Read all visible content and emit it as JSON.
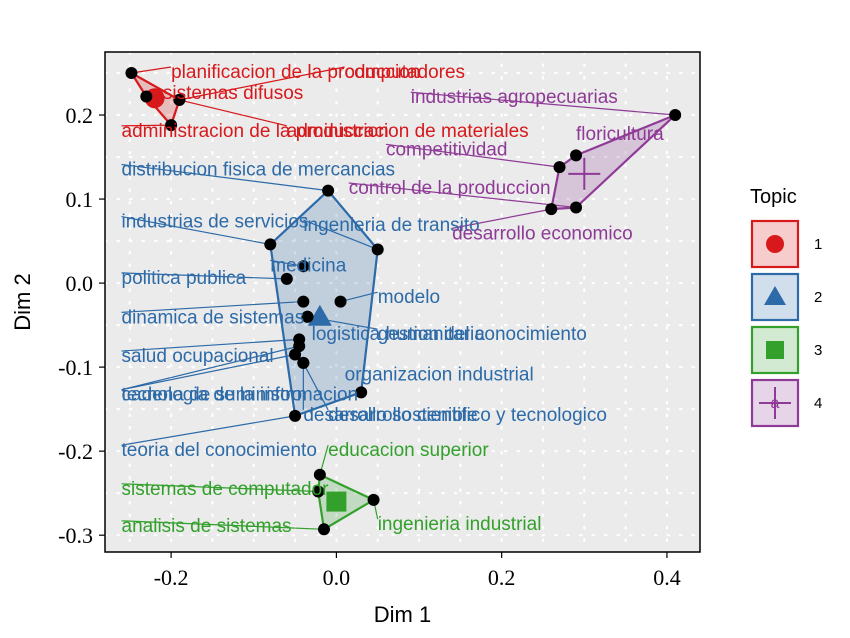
{
  "chart_data": {
    "type": "scatter",
    "title": "",
    "xlabel": "Dim 1",
    "ylabel": "Dim 2",
    "xlim": [
      -0.28,
      0.44
    ],
    "ylim": [
      -0.32,
      0.275
    ],
    "xticks": [
      -0.2,
      0.0,
      0.2,
      0.4
    ],
    "xtick_labels": [
      "-0.2",
      "0.0",
      "0.2",
      "0.4"
    ],
    "yticks": [
      -0.3,
      -0.2,
      -0.1,
      0.0,
      0.1,
      0.2
    ],
    "ytick_labels": [
      "-0.3",
      "-0.2",
      "-0.1",
      "0.0",
      "0.1",
      "0.2"
    ],
    "grid": true,
    "legend": {
      "title": "Topic",
      "placement": "right",
      "entries": [
        {
          "label": "1",
          "shape": "circle",
          "color": "#d7191c"
        },
        {
          "label": "2",
          "shape": "triangle",
          "color": "#2c6aa8"
        },
        {
          "label": "3",
          "shape": "square",
          "color": "#33a02c"
        },
        {
          "label": "4",
          "shape": "plus",
          "color": "#8e3a96"
        }
      ]
    },
    "series": [
      {
        "topic": "1",
        "color": "#d7191c",
        "centroid": {
          "x": -0.22,
          "y": 0.22
        },
        "points": [
          {
            "x": -0.248,
            "y": 0.25,
            "label": "planificacion de la produccion",
            "lx": -0.2,
            "ly": 0.25
          },
          {
            "x": -0.23,
            "y": 0.222,
            "label": "sistemas difusos",
            "lx": -0.21,
            "ly": 0.225
          },
          {
            "x": -0.19,
            "y": 0.218,
            "label": "computadores",
            "lx": 0.01,
            "ly": 0.25
          },
          {
            "x": -0.2,
            "y": 0.188,
            "label": "administracion de la produccion",
            "lx": -0.26,
            "ly": 0.18
          },
          {
            "x": -0.19,
            "y": 0.218,
            "label": "administracion de materiales",
            "lx": -0.06,
            "ly": 0.18
          }
        ]
      },
      {
        "topic": "2",
        "color": "#2c6aa8",
        "centroid": {
          "x": -0.02,
          "y": -0.04
        },
        "points": [
          {
            "x": -0.01,
            "y": 0.11,
            "label": "distribucion fisica de mercancias",
            "lx": -0.26,
            "ly": 0.134
          },
          {
            "x": -0.08,
            "y": 0.046,
            "label": "industrias de servicios",
            "lx": -0.26,
            "ly": 0.072
          },
          {
            "x": 0.05,
            "y": 0.04,
            "label": "ingenieria de transito",
            "lx": -0.04,
            "ly": 0.068
          },
          {
            "x": -0.04,
            "y": 0.02,
            "label": "medicina",
            "lx": -0.08,
            "ly": 0.02
          },
          {
            "x": -0.06,
            "y": 0.005,
            "label": "politica publica",
            "lx": -0.26,
            "ly": 0.005
          },
          {
            "x": 0.005,
            "y": -0.022,
            "label": "modelo",
            "lx": 0.05,
            "ly": -0.018
          },
          {
            "x": -0.04,
            "y": -0.022,
            "label": "dinamica de sistemas",
            "lx": -0.26,
            "ly": -0.042
          },
          {
            "x": -0.035,
            "y": -0.04,
            "label": "logistica humanitaria",
            "lx": -0.03,
            "ly": -0.062
          },
          {
            "x": -0.035,
            "y": -0.04,
            "label": "gestion del conocimiento",
            "lx": 0.05,
            "ly": -0.062
          },
          {
            "x": -0.045,
            "y": -0.067,
            "label": "salud ocupacional",
            "lx": -0.26,
            "ly": -0.088
          },
          {
            "x": -0.05,
            "y": -0.085,
            "label": "tecnologia de la informacion",
            "lx": -0.26,
            "ly": -0.134
          },
          {
            "x": -0.045,
            "y": -0.075,
            "label": "cadena de suministro",
            "lx": -0.26,
            "ly": -0.134
          },
          {
            "x": 0.03,
            "y": -0.13,
            "label": "organizacion industrial",
            "lx": 0.01,
            "ly": -0.11
          },
          {
            "x": -0.04,
            "y": -0.095,
            "label": "desarrollo sostenible",
            "lx": -0.04,
            "ly": -0.158
          },
          {
            "x": -0.04,
            "y": -0.095,
            "label": "desarrollo cientifico y tecnologico",
            "lx": -0.01,
            "ly": -0.158
          },
          {
            "x": -0.05,
            "y": -0.158,
            "label": "teoria del conocimiento",
            "lx": -0.26,
            "ly": -0.2
          }
        ]
      },
      {
        "topic": "3",
        "color": "#33a02c",
        "centroid": {
          "x": 0.0,
          "y": -0.26
        },
        "points": [
          {
            "x": -0.02,
            "y": -0.228,
            "label": "educacion superior",
            "lx": -0.01,
            "ly": -0.2
          },
          {
            "x": -0.022,
            "y": -0.248,
            "label": "sistemas de computador",
            "lx": -0.26,
            "ly": -0.246
          },
          {
            "x": 0.045,
            "y": -0.258,
            "label": "ingenieria industrial",
            "lx": 0.05,
            "ly": -0.288
          },
          {
            "x": -0.015,
            "y": -0.293,
            "label": "analisis de sistemas",
            "lx": -0.26,
            "ly": -0.29
          }
        ]
      },
      {
        "topic": "4",
        "color": "#8e3a96",
        "centroid": {
          "x": 0.3,
          "y": 0.13
        },
        "points": [
          {
            "x": 0.41,
            "y": 0.2,
            "label": "industrias agropecuarias",
            "lx": 0.09,
            "ly": 0.22
          },
          {
            "x": 0.29,
            "y": 0.152,
            "label": "floricultura",
            "lx": 0.29,
            "ly": 0.176
          },
          {
            "x": 0.27,
            "y": 0.138,
            "label": "competitividad",
            "lx": 0.06,
            "ly": 0.158
          },
          {
            "x": 0.29,
            "y": 0.09,
            "label": "control de la produccion",
            "lx": 0.015,
            "ly": 0.112
          },
          {
            "x": 0.26,
            "y": 0.088,
            "label": "desarrollo economico",
            "lx": 0.14,
            "ly": 0.058
          }
        ]
      }
    ]
  }
}
